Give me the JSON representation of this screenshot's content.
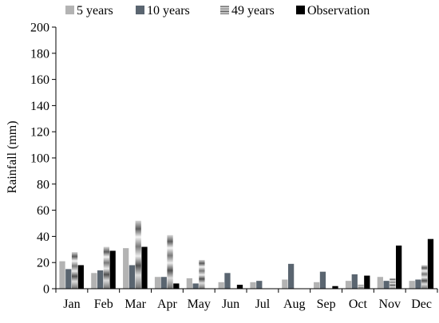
{
  "chart_data": {
    "type": "bar",
    "title": "",
    "xlabel": "",
    "ylabel": "Rainfall (mm)",
    "ylim": [
      0,
      200
    ],
    "yticks": [
      0,
      20,
      40,
      60,
      80,
      100,
      120,
      140,
      160,
      180,
      200
    ],
    "grid": false,
    "legend_position": "top",
    "categories": [
      "Jan",
      "Feb",
      "Mar",
      "Apr",
      "May",
      "Jun",
      "Jul",
      "Aug",
      "Sep",
      "Oct",
      "Nov",
      "Dec"
    ],
    "series": [
      {
        "name": "5 years",
        "color": "#b3b3b3",
        "pattern": "solid",
        "values": [
          21,
          12,
          31,
          9,
          8,
          5,
          5,
          7,
          5,
          6,
          9,
          6
        ]
      },
      {
        "name": "10 years",
        "color": "#5a6570",
        "pattern": "solid",
        "values": [
          15,
          14,
          18,
          9,
          4,
          12,
          6,
          19,
          13,
          11,
          6,
          7
        ]
      },
      {
        "name": "49 years",
        "color": "#9a9a9a",
        "pattern": "metallic",
        "values": [
          28,
          32,
          52,
          41,
          22,
          0,
          0,
          0,
          0,
          3,
          8,
          18
        ]
      },
      {
        "name": "Observation",
        "color": "#000000",
        "pattern": "solid",
        "values": [
          18,
          29,
          32,
          4,
          0,
          3,
          0,
          0,
          2,
          10,
          33,
          38
        ]
      }
    ]
  }
}
